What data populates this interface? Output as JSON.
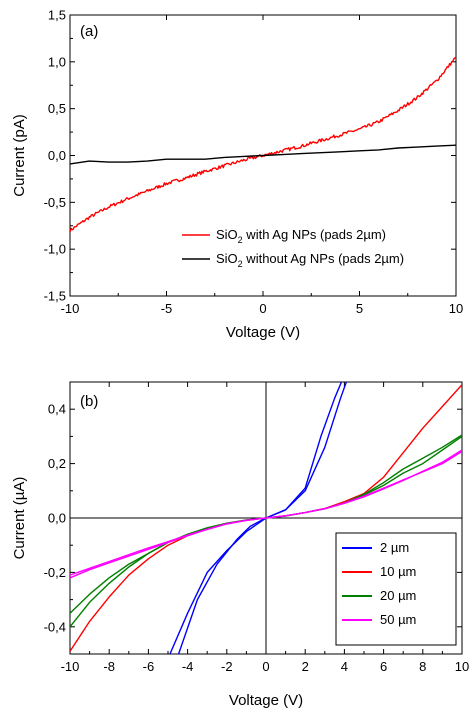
{
  "chart_data": [
    {
      "type": "line",
      "panel_label": "(a)",
      "xlabel": "Voltage (V)",
      "ylabel": "Current (pA)",
      "xlim": [
        -10,
        10
      ],
      "ylim": [
        -1.5,
        1.5
      ],
      "xticks": [
        -10,
        -5,
        0,
        5,
        10
      ],
      "xtick_labels": [
        "-10",
        "-5",
        "0",
        "5",
        "10"
      ],
      "yticks": [
        -1.5,
        -1.0,
        -0.5,
        0.0,
        0.5,
        1.0,
        1.5
      ],
      "ytick_labels": [
        "-1,5",
        "-1,0",
        "-0,5",
        "0,0",
        "0,5",
        "1,0",
        "1,5"
      ],
      "grid": false,
      "legend_position": "bottom-right",
      "series": [
        {
          "legend_prefix": "SiO",
          "legend_sub": "2",
          "legend_suffix": " with Ag NPs (pads 2µm)",
          "color": "#ff0000",
          "noisy": true,
          "x": [
            -10,
            -9,
            -8,
            -7,
            -6,
            -5,
            -4,
            -3,
            -2,
            -1,
            0,
            1,
            2,
            3,
            4,
            5,
            6,
            7,
            8,
            9,
            10
          ],
          "y": [
            -0.8,
            -0.66,
            -0.55,
            -0.46,
            -0.38,
            -0.3,
            -0.24,
            -0.17,
            -0.11,
            -0.05,
            0.0,
            0.05,
            0.1,
            0.16,
            0.22,
            0.28,
            0.36,
            0.48,
            0.62,
            0.8,
            1.05
          ]
        },
        {
          "legend_prefix": "SiO",
          "legend_sub": "2",
          "legend_suffix": " without Ag NPs (pads 2µm)",
          "color": "#000000",
          "noisy": false,
          "x": [
            -10,
            -9,
            -8,
            -7,
            -6,
            -5,
            -4,
            -3,
            -2,
            -1,
            0,
            1,
            2,
            3,
            4,
            5,
            6,
            7,
            8,
            9,
            10
          ],
          "y": [
            -0.09,
            -0.06,
            -0.07,
            -0.07,
            -0.06,
            -0.04,
            -0.04,
            -0.04,
            -0.02,
            -0.01,
            0.0,
            0.01,
            0.02,
            0.03,
            0.04,
            0.05,
            0.06,
            0.08,
            0.09,
            0.1,
            0.11
          ]
        }
      ]
    },
    {
      "type": "line",
      "panel_label": "(b)",
      "xlabel": "Voltage (V)",
      "ylabel": "Current (µA)",
      "xlim": [
        -10,
        10
      ],
      "ylim": [
        -0.5,
        0.5
      ],
      "xticks": [
        -10,
        -8,
        -6,
        -4,
        -2,
        0,
        2,
        4,
        6,
        8,
        10
      ],
      "xtick_labels": [
        "-10",
        "-8",
        "-6",
        "-4",
        "-2",
        "0",
        "2",
        "4",
        "6",
        "8",
        "10"
      ],
      "yticks": [
        -0.4,
        -0.2,
        0.0,
        0.2,
        0.4
      ],
      "ytick_labels": [
        "-0,4",
        "-0,2",
        "0,0",
        "0,2",
        "0,4"
      ],
      "grid": false,
      "crosshair_at_zero": true,
      "legend_position": "bottom-right",
      "series": [
        {
          "name": "2 µm",
          "color": "#0000ff",
          "curves": [
            {
              "x": [
                -5.2,
                -4,
                -3,
                -2,
                -1,
                0,
                1,
                2,
                3,
                3.8,
                4.4
              ],
              "y": [
                -0.55,
                -0.35,
                -0.2,
                -0.12,
                -0.05,
                0.0,
                0.03,
                0.1,
                0.26,
                0.44,
                0.56
              ]
            },
            {
              "x": [
                -4.7,
                -3.5,
                -2.5,
                -1.5,
                -0.8,
                0,
                1,
                2,
                2.8,
                3.5,
                4.2
              ],
              "y": [
                -0.55,
                -0.3,
                -0.17,
                -0.08,
                -0.03,
                0.0,
                0.03,
                0.11,
                0.3,
                0.44,
                0.56
              ]
            }
          ]
        },
        {
          "name": "10 µm",
          "color": "#ff0000",
          "curves": [
            {
              "x": [
                -10,
                -9,
                -8,
                -7,
                -6,
                -5,
                -4,
                -3,
                -2,
                -1,
                0,
                1,
                2,
                3,
                4,
                5,
                6,
                7,
                8,
                9,
                10
              ],
              "y": [
                -0.49,
                -0.38,
                -0.29,
                -0.21,
                -0.15,
                -0.1,
                -0.065,
                -0.04,
                -0.02,
                -0.008,
                0.0,
                0.008,
                0.02,
                0.035,
                0.06,
                0.09,
                0.15,
                0.24,
                0.33,
                0.41,
                0.49
              ]
            }
          ]
        },
        {
          "name": "20 µm",
          "color": "#008000",
          "curves": [
            {
              "x": [
                -10,
                -9,
                -8,
                -7,
                -6,
                -5,
                -4,
                -3,
                -2,
                -1,
                0,
                1,
                2,
                3,
                4,
                5,
                6,
                7,
                8,
                9,
                10
              ],
              "y": [
                -0.4,
                -0.31,
                -0.24,
                -0.18,
                -0.13,
                -0.09,
                -0.06,
                -0.037,
                -0.02,
                -0.008,
                0.0,
                0.008,
                0.02,
                0.035,
                0.055,
                0.085,
                0.12,
                0.165,
                0.2,
                0.25,
                0.3
              ]
            },
            {
              "x": [
                -10,
                -9,
                -8,
                -7,
                -6,
                -5,
                -4,
                -3,
                -2,
                -1,
                0,
                1,
                2,
                3,
                4,
                5,
                6,
                7,
                8,
                9,
                10
              ],
              "y": [
                -0.35,
                -0.28,
                -0.22,
                -0.17,
                -0.13,
                -0.09,
                -0.06,
                -0.036,
                -0.019,
                -0.007,
                0.0,
                0.007,
                0.02,
                0.034,
                0.055,
                0.087,
                0.13,
                0.18,
                0.22,
                0.26,
                0.305
              ]
            }
          ]
        },
        {
          "name": "50 µm",
          "color": "#ff00ff",
          "curves": [
            {
              "x": [
                -10,
                -9,
                -8,
                -7,
                -6,
                -5,
                -4,
                -3,
                -2,
                -1,
                0,
                1,
                2,
                3,
                4,
                5,
                6,
                7,
                8,
                9,
                10
              ],
              "y": [
                -0.22,
                -0.19,
                -0.165,
                -0.14,
                -0.115,
                -0.09,
                -0.065,
                -0.042,
                -0.022,
                -0.009,
                0.0,
                0.008,
                0.02,
                0.035,
                0.055,
                0.08,
                0.11,
                0.14,
                0.17,
                0.2,
                0.245
              ]
            },
            {
              "x": [
                -10,
                -9,
                -8,
                -7,
                -6,
                -5,
                -4,
                -3,
                -2,
                -1,
                0,
                1,
                2,
                3,
                4,
                5,
                6,
                7,
                8,
                9,
                10
              ],
              "y": [
                -0.21,
                -0.185,
                -0.16,
                -0.135,
                -0.11,
                -0.087,
                -0.063,
                -0.041,
                -0.021,
                -0.008,
                0.0,
                0.008,
                0.02,
                0.034,
                0.054,
                0.078,
                0.107,
                0.138,
                0.172,
                0.205,
                0.25
              ]
            }
          ]
        }
      ]
    }
  ]
}
